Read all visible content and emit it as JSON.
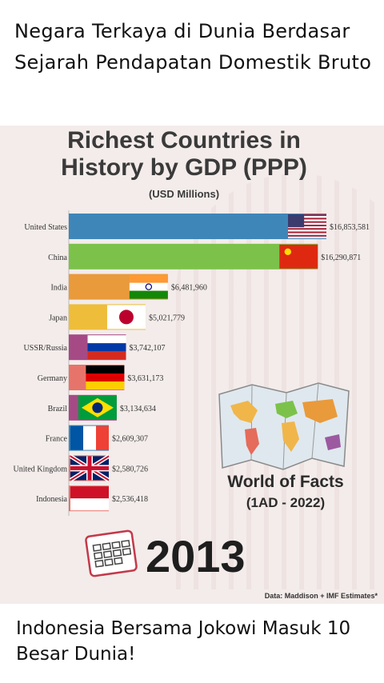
{
  "caption_top": "Negara Terkaya di Dunia Berdasar Sejarah Pendapatan Domestik Bruto",
  "caption_bottom": "Indonesia Bersama Jokowi Masuk 10 Besar Dunia!",
  "watermark": {
    "title": "World of Facts",
    "range": "(1AD - 2022)",
    "year": "2013",
    "source": "Data: Maddison + IMF Estimates*"
  },
  "chart_data": {
    "type": "bar",
    "orientation": "horizontal",
    "title": "Richest Countries in History by GDP (PPP)",
    "subtitle": "(USD Millions)",
    "categories": [
      "United States",
      "China",
      "India",
      "Japan",
      "USSR/Russia",
      "Germany",
      "Brazil",
      "France",
      "United Kingdom",
      "Indonesia"
    ],
    "values": [
      16853581,
      16290871,
      6481960,
      5021779,
      3742107,
      3631173,
      3134634,
      2609307,
      2580726,
      2536418
    ],
    "value_labels": [
      "$16,853,581",
      "$16,290,871",
      "$6,481,960",
      "$5,021,779",
      "$3,742,107",
      "$3,631,173",
      "$3,134,634",
      "$2,609,307",
      "$2,580,726",
      "$2,536,418"
    ],
    "colors": [
      "#3f86b8",
      "#7cc24a",
      "#e99a3b",
      "#eebd3a",
      "#a64a86",
      "#e7746a",
      "#a64a86",
      "#3f86b8",
      "#e7746a",
      "#e7746a"
    ],
    "flags": [
      "us",
      "china",
      "india",
      "japan",
      "russia",
      "germany",
      "brazil",
      "france",
      "uk",
      "indonesia"
    ],
    "xlim": [
      0,
      16853581
    ],
    "legend": "none"
  }
}
